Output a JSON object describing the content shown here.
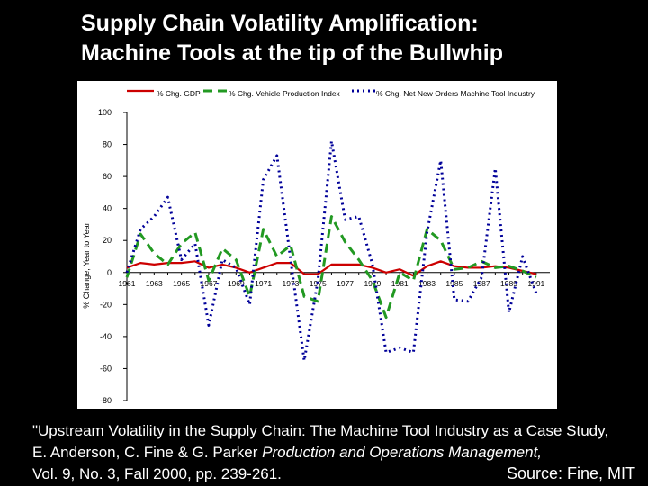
{
  "title": {
    "line1": "Supply Chain Volatility Amplification:",
    "line2": "Machine Tools at the tip of the Bullwhip"
  },
  "citation": {
    "line1": "\"Upstream Volatility in the Supply Chain: The Machine Tool Industry as a Case Study,",
    "line2_authors": "E. Anderson,   C. Fine & G. Parker  ",
    "line2_journal": "Production and Operations Management,",
    "line3": "Vol. 9, No. 3, Fall 2000, pp. 239-261."
  },
  "source": "Source: Fine, MIT",
  "chart_data": {
    "type": "line",
    "title": "",
    "xlabel": "",
    "ylabel": "% Change, Year to Year",
    "x": [
      1961,
      1962,
      1963,
      1964,
      1965,
      1966,
      1967,
      1968,
      1969,
      1970,
      1971,
      1972,
      1973,
      1974,
      1975,
      1976,
      1977,
      1978,
      1979,
      1980,
      1981,
      1982,
      1983,
      1984,
      1985,
      1986,
      1987,
      1988,
      1989,
      1990,
      1991
    ],
    "xlim": [
      1961,
      1992
    ],
    "ylim": [
      -80,
      100
    ],
    "yticks": [
      -80,
      -60,
      -40,
      -20,
      0,
      20,
      40,
      60,
      80,
      100
    ],
    "xticks": [
      "1961",
      "1963",
      "1965",
      "1967",
      "1969",
      "1971",
      "1973",
      "1975",
      "1977",
      "1979",
      "1981",
      "1983",
      "1985",
      "1987",
      "1989",
      "1991"
    ],
    "legend_position": "top",
    "series": [
      {
        "name": "% Chg. GDP",
        "color": "#cc0000",
        "style": "solid",
        "values": [
          3,
          6,
          5,
          6,
          6,
          7,
          3,
          5,
          3,
          0,
          3,
          6,
          6,
          -1,
          -1,
          5,
          5,
          5,
          3,
          0,
          2,
          -2,
          4,
          7,
          4,
          3,
          3,
          4,
          3,
          1,
          -1
        ]
      },
      {
        "name": "% Chg. Vehicle Production Index",
        "color": "#229922",
        "style": "dashed",
        "values": [
          -3,
          24,
          12,
          5,
          18,
          25,
          -5,
          15,
          8,
          -15,
          27,
          10,
          17,
          -15,
          -18,
          35,
          19,
          8,
          -5,
          -28,
          0,
          -5,
          27,
          20,
          2,
          3,
          7,
          3,
          4,
          1,
          -3
        ]
      },
      {
        "name": "% Chg. Net New Orders Machine Tool Industry",
        "color": "#000099",
        "style": "dotted",
        "values": [
          0,
          27,
          35,
          47,
          8,
          18,
          -33,
          8,
          3,
          -20,
          58,
          73,
          8,
          -55,
          -5,
          82,
          33,
          35,
          5,
          -50,
          -47,
          -50,
          25,
          70,
          -17,
          -18,
          -3,
          65,
          -25,
          10,
          -13
        ]
      }
    ]
  }
}
